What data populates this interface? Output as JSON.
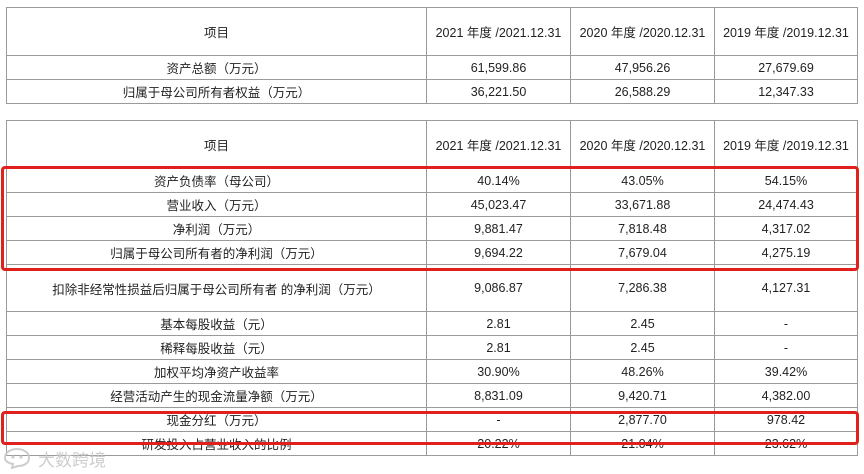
{
  "headers": [
    "项目",
    "2021 年度 /2021.12.31",
    "2020 年度 /2020.12.31",
    "2019 年度 /2019.12.31"
  ],
  "table1": {
    "rows": [
      [
        "资产总额（万元）",
        "61,599.86",
        "47,956.26",
        "27,679.69"
      ],
      [
        "归属于母公司所有者权益（万元）",
        "36,221.50",
        "26,588.29",
        "12,347.33"
      ]
    ]
  },
  "table2": {
    "rows": [
      [
        "资产负债率（母公司）",
        "40.14%",
        "43.05%",
        "54.15%"
      ],
      [
        "营业收入（万元）",
        "45,023.47",
        "33,671.88",
        "24,474.43"
      ],
      [
        "净利润（万元）",
        "9,881.47",
        "7,818.48",
        "4,317.02"
      ],
      [
        "归属于母公司所有者的净利润（万元）",
        "9,694.22",
        "7,679.04",
        "4,275.19"
      ],
      [
        "扣除非经常性损益后归属于母公司所有者 的净利润（万元）",
        "9,086.87",
        "7,286.38",
        "4,127.31"
      ],
      [
        "基本每股收益（元）",
        "2.81",
        "2.45",
        "-"
      ],
      [
        "稀释每股收益（元）",
        "2.81",
        "2.45",
        "-"
      ],
      [
        "加权平均净资产收益率",
        "30.90%",
        "48.26%",
        "39.42%"
      ],
      [
        "经营活动产生的现金流量净额（万元）",
        "8,831.09",
        "9,420.71",
        "4,382.00"
      ],
      [
        "现金分红（万元）",
        "-",
        "2,877.70",
        "978.42"
      ],
      [
        "研发投入占营业收入的比例",
        "20.22%",
        "21.04%",
        "23.62%"
      ]
    ]
  },
  "watermark": {
    "text": "大数跨境",
    "icon": "watermark-logo-icon"
  },
  "colors": {
    "border": "#9a9a9a",
    "highlight": "#e0201b",
    "text": "#222222"
  }
}
